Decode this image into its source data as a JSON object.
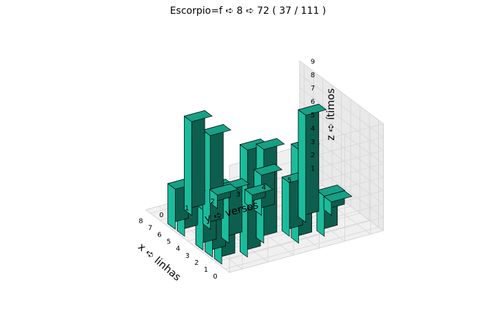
{
  "chart_data": {
    "type": "bar3d",
    "title": "Escorpio=f ➪ 8 ➪ 72 ( 37 / 111 )",
    "xlabel": "x ➪ linhas",
    "ylabel": "y ➪ versos",
    "zlabel": "z ➪ ítimos",
    "xticks": [
      "0",
      "1",
      "2",
      "3",
      "4",
      "5",
      "6",
      "7",
      "8"
    ],
    "yticks": [
      "0",
      "1",
      "2",
      "3",
      "4",
      "5"
    ],
    "zticks": [
      "1",
      "2",
      "3",
      "4",
      "5",
      "6",
      "7",
      "8",
      "9"
    ],
    "xlim": [
      0,
      8
    ],
    "ylim": [
      0,
      5
    ],
    "zlim": [
      1,
      9
    ],
    "grid": true,
    "bar_color": "#1abc9c",
    "bars": [
      {
        "x": 1,
        "y": 0,
        "z": 5
      },
      {
        "x": 1,
        "y": 1,
        "z": 9
      },
      {
        "x": 1,
        "y": 3,
        "z": 8
      },
      {
        "x": 1,
        "y": 4,
        "z": 4
      },
      {
        "x": 2,
        "y": 0,
        "z": 6
      },
      {
        "x": 2,
        "y": 2,
        "z": 8
      },
      {
        "x": 2,
        "y": 3,
        "z": 5
      },
      {
        "x": 3,
        "y": 0,
        "z": 4
      },
      {
        "x": 3,
        "y": 1,
        "z": 5
      },
      {
        "x": 3,
        "y": 4,
        "z": 9
      },
      {
        "x": 3,
        "y": 5,
        "z": 2
      },
      {
        "x": 5,
        "y": 0,
        "z": 4
      },
      {
        "x": 5,
        "y": 1,
        "z": 8
      },
      {
        "x": 5,
        "y": 3,
        "z": 4
      },
      {
        "x": 6,
        "y": 0,
        "z": 4
      },
      {
        "x": 6,
        "y": 3,
        "z": 2
      },
      {
        "x": 7,
        "y": 1,
        "z": 8
      },
      {
        "x": 7,
        "y": 2,
        "z": 2
      }
    ]
  }
}
